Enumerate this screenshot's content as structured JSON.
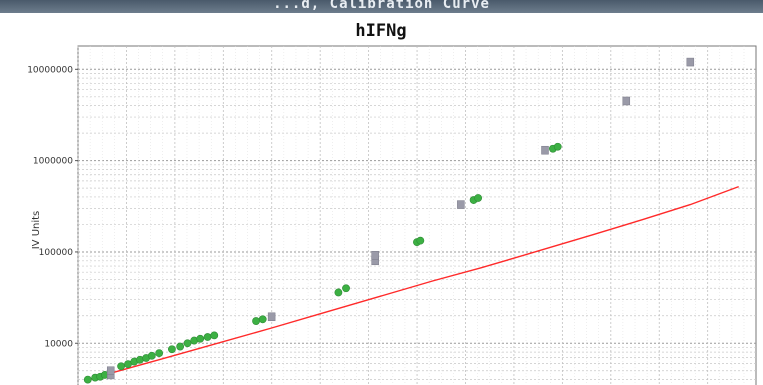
{
  "window": {
    "title": "...d, Calibration Curve"
  },
  "chart_data": {
    "type": "scatter",
    "title": "hIFNg",
    "xlabel": "",
    "ylabel": "IV Units",
    "yscale": "log",
    "xscale": "log",
    "ylim": [
      3000,
      18000000
    ],
    "y_ticks": [
      10000,
      100000,
      1000000,
      10000000
    ],
    "y_tick_labels": [
      "10000",
      "100000",
      "1000000",
      "10000000"
    ],
    "grid": true,
    "colors": {
      "curve": "#ff2a2a",
      "standards": "#9a9aa8",
      "samples": "#3cb043"
    },
    "series": [
      {
        "name": "",
        "kind": "fit-curve",
        "x": [
          0.035,
          0.05,
          0.1,
          0.2,
          0.5,
          1,
          2,
          5,
          10,
          20,
          50,
          100,
          200,
          400
        ],
        "y": [
          3900,
          4700,
          6600,
          9300,
          14700,
          21000,
          30000,
          48000,
          67000,
          96000,
          155000,
          225000,
          330000,
          520000
        ]
      }
    ],
    "points": {
      "standards": [
        {
          "x": 0.05,
          "y": 4500
        },
        {
          "x": 0.05,
          "y": 5000
        },
        {
          "x": 0.5,
          "y": 19500
        },
        {
          "x": 2.2,
          "y": 80000
        },
        {
          "x": 2.2,
          "y": 92000
        },
        {
          "x": 7.5,
          "y": 330000
        },
        {
          "x": 25,
          "y": 1300000
        },
        {
          "x": 80,
          "y": 4500000
        },
        {
          "x": 200,
          "y": 12000000
        }
      ],
      "samples": [
        {
          "x": 0.036,
          "y": 4000
        },
        {
          "x": 0.04,
          "y": 4200
        },
        {
          "x": 0.043,
          "y": 4300
        },
        {
          "x": 0.046,
          "y": 4500
        },
        {
          "x": 0.058,
          "y": 5600
        },
        {
          "x": 0.064,
          "y": 5900
        },
        {
          "x": 0.07,
          "y": 6300
        },
        {
          "x": 0.076,
          "y": 6600
        },
        {
          "x": 0.083,
          "y": 6900
        },
        {
          "x": 0.09,
          "y": 7300
        },
        {
          "x": 0.1,
          "y": 7800
        },
        {
          "x": 0.12,
          "y": 8600
        },
        {
          "x": 0.135,
          "y": 9200
        },
        {
          "x": 0.15,
          "y": 10000
        },
        {
          "x": 0.165,
          "y": 10700
        },
        {
          "x": 0.18,
          "y": 11200
        },
        {
          "x": 0.2,
          "y": 11700
        },
        {
          "x": 0.22,
          "y": 12200
        },
        {
          "x": 0.4,
          "y": 17500
        },
        {
          "x": 0.44,
          "y": 18300
        },
        {
          "x": 1.3,
          "y": 36000
        },
        {
          "x": 1.45,
          "y": 40000
        },
        {
          "x": 4,
          "y": 128000
        },
        {
          "x": 4.2,
          "y": 133000
        },
        {
          "x": 9,
          "y": 370000
        },
        {
          "x": 9.6,
          "y": 390000
        },
        {
          "x": 28,
          "y": 1350000
        },
        {
          "x": 30,
          "y": 1420000
        }
      ]
    }
  }
}
